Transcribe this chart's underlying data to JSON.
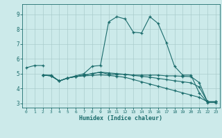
{
  "title": "",
  "xlabel": "Humidex (Indice chaleur)",
  "background_color": "#cceaea",
  "grid_color": "#aacccc",
  "line_color": "#1a6b6b",
  "xlim": [
    -0.5,
    23.5
  ],
  "ylim": [
    2.7,
    9.7
  ],
  "xticks": [
    0,
    1,
    2,
    3,
    4,
    5,
    6,
    7,
    8,
    9,
    10,
    11,
    12,
    13,
    14,
    15,
    16,
    17,
    18,
    19,
    20,
    21,
    22,
    23
  ],
  "yticks": [
    3,
    4,
    5,
    6,
    7,
    8,
    9
  ],
  "lines": [
    {
      "x": [
        0,
        1,
        2
      ],
      "y": [
        5.4,
        5.55,
        5.55
      ]
    },
    {
      "x": [
        2,
        3,
        4,
        5,
        6,
        7,
        8,
        9,
        10,
        11,
        12,
        13,
        14,
        15,
        16,
        17,
        18,
        19,
        20,
        21,
        22,
        23
      ],
      "y": [
        4.9,
        4.9,
        4.5,
        4.7,
        4.85,
        5.0,
        5.5,
        5.55,
        8.5,
        8.85,
        8.7,
        7.8,
        7.75,
        8.85,
        8.4,
        7.1,
        5.5,
        4.9,
        4.9,
        3.7,
        3.05,
        3.05
      ]
    },
    {
      "x": [
        2,
        3,
        4,
        5,
        6,
        7,
        8,
        9,
        10,
        11,
        12,
        13,
        14,
        15,
        16,
        17,
        18,
        19,
        20,
        21,
        22,
        23
      ],
      "y": [
        4.9,
        4.85,
        4.5,
        4.7,
        4.8,
        4.9,
        5.0,
        5.1,
        4.95,
        4.95,
        4.95,
        4.9,
        4.9,
        4.9,
        4.9,
        4.85,
        4.85,
        4.82,
        4.8,
        4.4,
        3.1,
        3.1
      ]
    },
    {
      "x": [
        2,
        3,
        4,
        5,
        6,
        7,
        8,
        9,
        10,
        11,
        12,
        13,
        14,
        15,
        16,
        17,
        18,
        19,
        20,
        21,
        22,
        23
      ],
      "y": [
        4.9,
        4.85,
        4.5,
        4.7,
        4.8,
        4.9,
        5.0,
        5.1,
        5.05,
        5.0,
        4.95,
        4.88,
        4.82,
        4.76,
        4.68,
        4.6,
        4.52,
        4.45,
        4.38,
        4.1,
        3.1,
        3.1
      ]
    },
    {
      "x": [
        2,
        3,
        4,
        5,
        6,
        7,
        8,
        9,
        10,
        11,
        12,
        13,
        14,
        15,
        16,
        17,
        18,
        19,
        20,
        21,
        22,
        23
      ],
      "y": [
        4.9,
        4.85,
        4.5,
        4.7,
        4.8,
        4.85,
        4.88,
        4.92,
        4.88,
        4.82,
        4.75,
        4.6,
        4.45,
        4.3,
        4.15,
        4.0,
        3.85,
        3.7,
        3.55,
        3.4,
        3.1,
        3.1
      ]
    }
  ]
}
